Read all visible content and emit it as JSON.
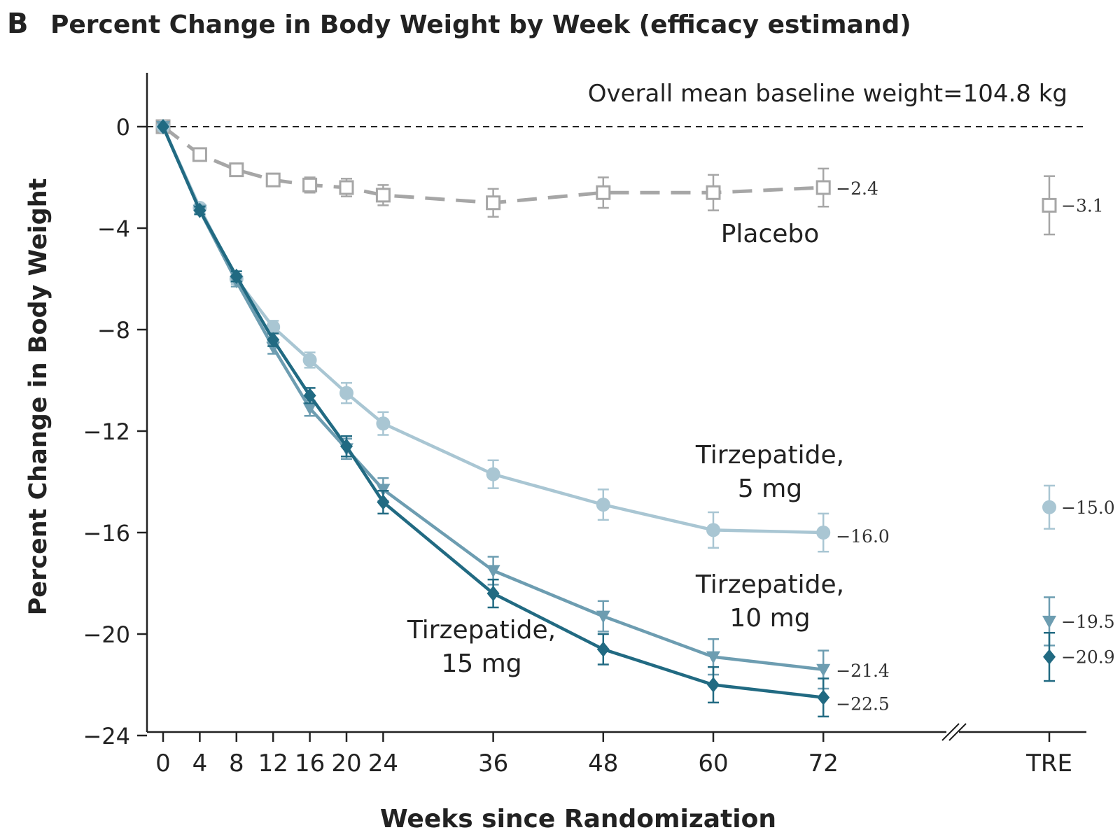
{
  "chart_data": {
    "type": "line",
    "panel_letter": "B",
    "title": "Percent Change in Body Weight by Week (efficacy estimand)",
    "xlabel": "Weeks since Randomization",
    "ylabel": "Percent Change in Body Weight",
    "annotation": "Overall mean baseline weight=104.8 kg",
    "ylim": [
      -24,
      2
    ],
    "yticks": [
      0,
      -4,
      -8,
      -12,
      -16,
      -20,
      -24
    ],
    "ytick_labels": [
      "0",
      "−4",
      "−8",
      "−12",
      "−16",
      "−20",
      "−24"
    ],
    "xticks": [
      0,
      4,
      8,
      12,
      16,
      20,
      24,
      36,
      48,
      60,
      72
    ],
    "xtick_labels": [
      "0",
      "4",
      "8",
      "12",
      "16",
      "20",
      "24",
      "36",
      "48",
      "60",
      "72"
    ],
    "tre_label": "TRE",
    "reference_line_y": 0,
    "series": [
      {
        "name": "Placebo",
        "label_lines": [
          "Placebo"
        ],
        "color": "#a6a6a6",
        "line_style": "dashed",
        "marker": "square-open",
        "x": [
          0,
          4,
          8,
          12,
          16,
          20,
          24,
          36,
          48,
          60,
          72
        ],
        "y": [
          0,
          -1.1,
          -1.7,
          -2.1,
          -2.3,
          -2.4,
          -2.7,
          -3.0,
          -2.6,
          -2.6,
          -2.4
        ],
        "err": [
          0,
          0.2,
          0.25,
          0.25,
          0.3,
          0.35,
          0.4,
          0.55,
          0.6,
          0.7,
          0.75
        ],
        "end_label": "−2.4",
        "tre": {
          "y": -3.1,
          "err": 1.15,
          "label": "−3.1"
        }
      },
      {
        "name": "Tirzepatide, 5 mg",
        "label_lines": [
          "Tirzepatide,",
          "5 mg"
        ],
        "color": "#a9c6d3",
        "line_style": "solid",
        "marker": "circle",
        "x": [
          0,
          4,
          8,
          12,
          16,
          20,
          24,
          36,
          48,
          60,
          72
        ],
        "y": [
          0,
          -3.2,
          -6.0,
          -7.9,
          -9.2,
          -10.5,
          -11.7,
          -13.7,
          -14.9,
          -15.9,
          -16.0
        ],
        "err": [
          0,
          0.15,
          0.2,
          0.25,
          0.3,
          0.4,
          0.45,
          0.55,
          0.6,
          0.7,
          0.75
        ],
        "end_label": "−16.0",
        "tre": {
          "y": -15.0,
          "err": 0.85,
          "label": "−15.0"
        }
      },
      {
        "name": "Tirzepatide, 10 mg",
        "label_lines": [
          "Tirzepatide,",
          "10 mg"
        ],
        "color": "#6d9db1",
        "line_style": "solid",
        "marker": "triangle-down",
        "x": [
          0,
          4,
          8,
          12,
          16,
          20,
          24,
          36,
          48,
          60,
          72
        ],
        "y": [
          0,
          -3.3,
          -6.1,
          -8.7,
          -11.1,
          -12.7,
          -14.3,
          -17.5,
          -19.3,
          -20.9,
          -21.4
        ],
        "err": [
          0,
          0.15,
          0.2,
          0.25,
          0.3,
          0.4,
          0.45,
          0.55,
          0.6,
          0.7,
          0.75
        ],
        "end_label": "−21.4",
        "tre": {
          "y": -19.5,
          "err": 0.95,
          "label": "−19.5"
        }
      },
      {
        "name": "Tirzepatide, 15 mg",
        "label_lines": [
          "Tirzepatide,",
          "15 mg"
        ],
        "color": "#216a82",
        "line_style": "solid",
        "marker": "diamond",
        "x": [
          0,
          4,
          8,
          12,
          16,
          20,
          24,
          36,
          48,
          60,
          72
        ],
        "y": [
          0,
          -3.3,
          -5.9,
          -8.4,
          -10.6,
          -12.6,
          -14.8,
          -18.4,
          -20.6,
          -22.0,
          -22.5
        ],
        "err": [
          0,
          0.15,
          0.2,
          0.25,
          0.3,
          0.4,
          0.45,
          0.55,
          0.6,
          0.7,
          0.75
        ],
        "end_label": "−22.5",
        "tre": {
          "y": -20.9,
          "err": 0.95,
          "label": "−20.9"
        }
      }
    ]
  }
}
